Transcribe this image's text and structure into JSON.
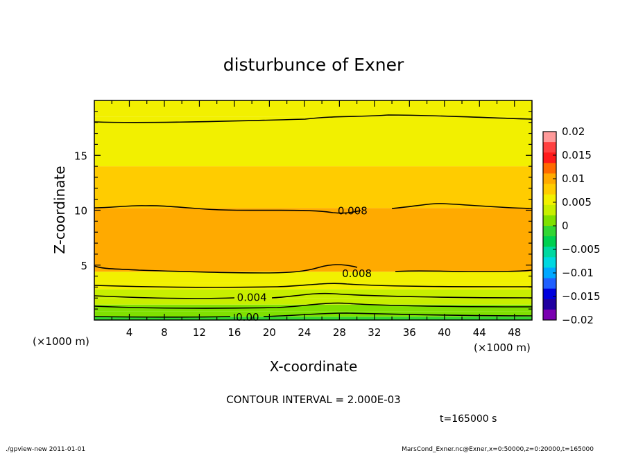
{
  "chart_data": {
    "type": "heatmap",
    "title": "disturbunce of Exner",
    "xlabel": "X-coordinate",
    "ylabel": "Z-coordinate",
    "x_unit": "(×1000 m)",
    "y_unit": "(×1000 m)",
    "xlim": [
      0,
      50
    ],
    "ylim": [
      0,
      20
    ],
    "x_ticks": [
      "4",
      "8",
      "12",
      "16",
      "20",
      "24",
      "28",
      "32",
      "36",
      "40",
      "44",
      "48"
    ],
    "y_ticks": [
      "5",
      "10",
      "15"
    ],
    "colorbar": {
      "ticks": [
        "0.02",
        "0.015",
        "0.01",
        "0.005",
        "0",
        "−0.005",
        "−0.01",
        "−0.015",
        "−0.02"
      ],
      "colors": [
        "#ff9a9a",
        "#ff4040",
        "#ff1a1a",
        "#ff6a00",
        "#ffaa00",
        "#ffcc00",
        "#f2f000",
        "#c8ef00",
        "#7fe000",
        "#33d633",
        "#00d050",
        "#00d8a0",
        "#00d8e0",
        "#00a8ff",
        "#2060ff",
        "#0000dd",
        "#2000a0",
        "#7a00b0"
      ]
    },
    "contour_interval": "CONTOUR INTERVAL = 2.000E-03",
    "contour_labels": [
      {
        "text": "0.008",
        "x": 29.5,
        "z": 10.0
      },
      {
        "text": "0.008",
        "x": 30.0,
        "z": 4.3
      },
      {
        "text": "0.004",
        "x": 18.0,
        "z": 2.1
      },
      {
        "text": "0.00",
        "x": 17.5,
        "z": 0.3
      }
    ],
    "bands": [
      {
        "z0": 0.0,
        "z1": 0.3,
        "value": -0.001
      },
      {
        "z0": 0.3,
        "z1": 0.8,
        "value": 0.001
      },
      {
        "z0": 0.8,
        "z1": 1.4,
        "value": 0.002
      },
      {
        "z0": 1.4,
        "z1": 2.0,
        "value": 0.003
      },
      {
        "z0": 2.0,
        "z1": 2.8,
        "value": 0.004
      },
      {
        "z0": 2.8,
        "z1": 3.4,
        "value": 0.005
      },
      {
        "z0": 3.4,
        "z1": 4.4,
        "value": 0.006
      },
      {
        "z0": 4.4,
        "z1": 10.2,
        "value": 0.009
      },
      {
        "z0": 10.2,
        "z1": 14.0,
        "value": 0.007
      },
      {
        "z0": 14.0,
        "z1": 18.5,
        "value": 0.006
      },
      {
        "z0": 18.5,
        "z1": 20.0,
        "value": 0.005
      }
    ],
    "time": "t=165000 s"
  },
  "footer": {
    "left": "./gpview-new   2011-01-01",
    "right": "MarsCond_Exner.nc@Exner,x=0:50000,z=0:20000,t=165000"
  }
}
